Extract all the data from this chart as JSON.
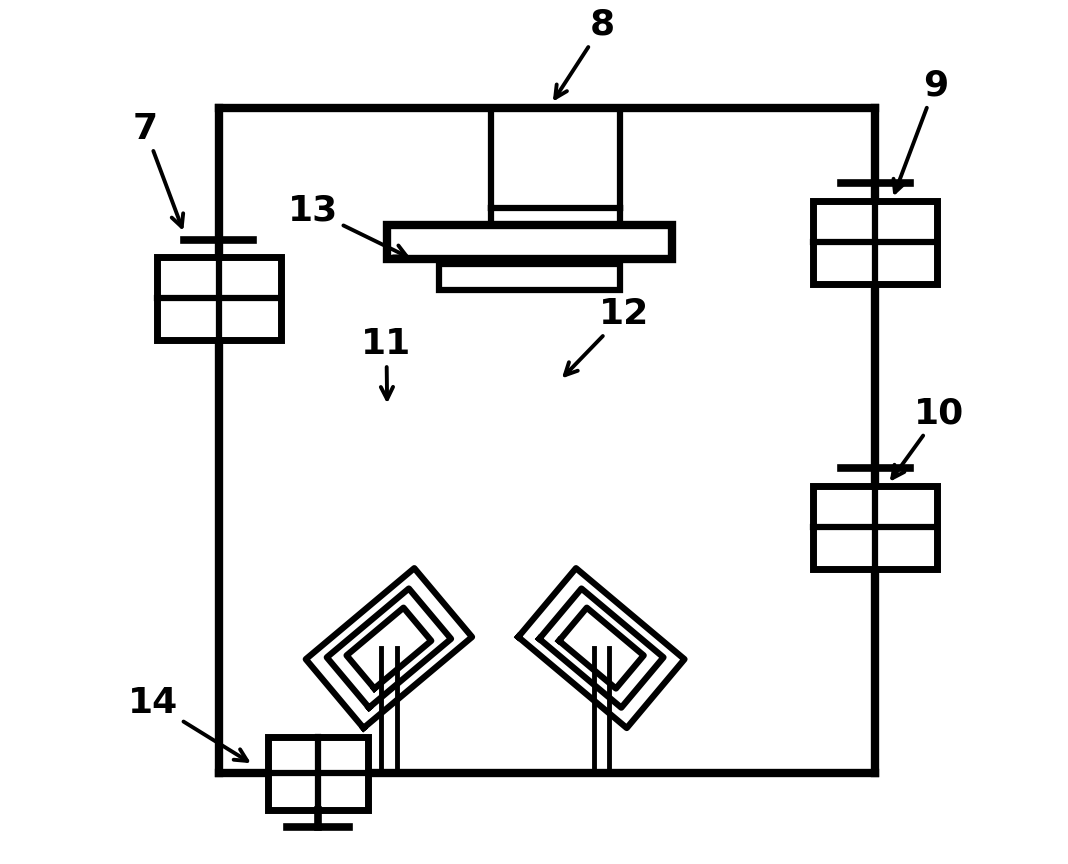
{
  "bg_color": "#ffffff",
  "lc": "#000000",
  "lw": 4.5,
  "fig_w": 10.68,
  "fig_h": 8.64,
  "BL": 0.135,
  "BR": 0.895,
  "BT": 0.875,
  "BB": 0.105
}
